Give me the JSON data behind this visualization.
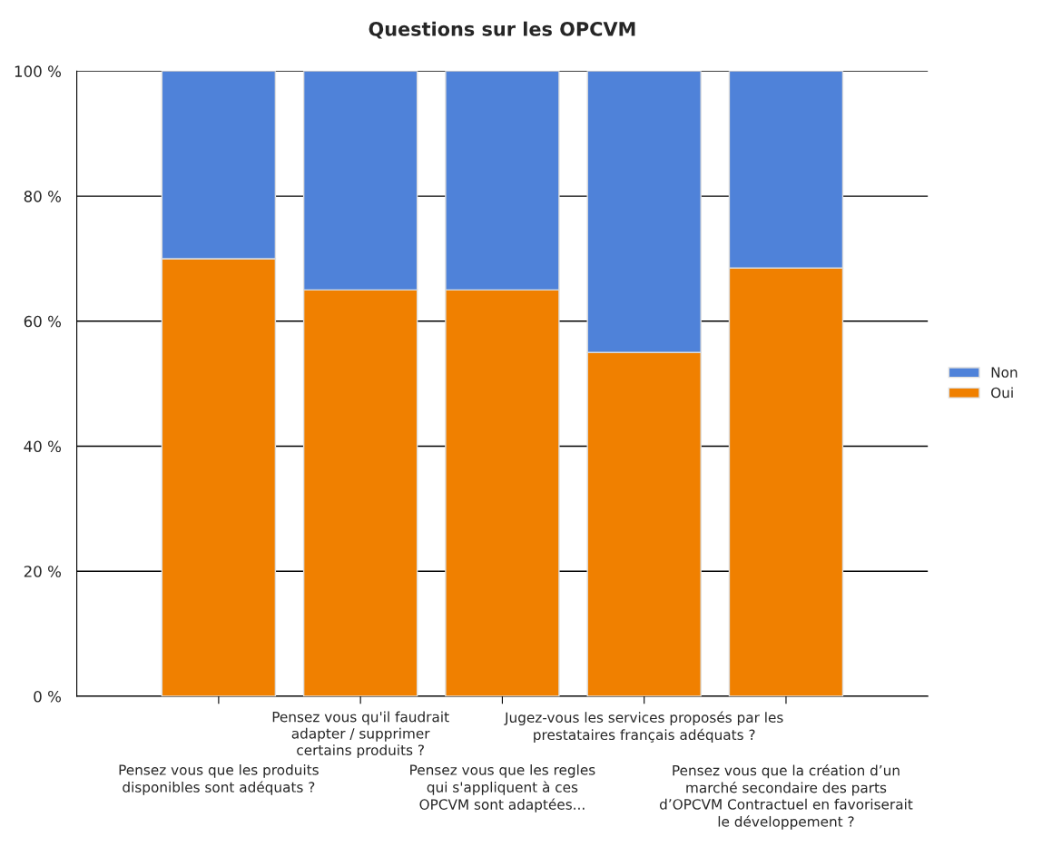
{
  "chart_data": {
    "type": "bar",
    "title": "Questions sur les OPCVM",
    "stacked": true,
    "categories": [
      "Pensez vous que les produits\ndisponibles sont adéquats ?",
      "Pensez vous qu'il faudrait\nadapter / supprimer\ncertains produits ?",
      "Pensez vous que les regles\nqui s'appliquent à ces\nOPCVM sont adaptées...",
      "Jugez-vous les services proposés par les\nprestataires français adéquats ?",
      "Pensez vous que la création d’un\nmarché secondaire des parts\nd’OPCVM Contractuel en favoriserait\nle développement ?"
    ],
    "series": [
      {
        "name": "Oui",
        "color": "#f08000",
        "values": [
          70,
          65,
          65,
          55,
          68.5
        ]
      },
      {
        "name": "Non",
        "color": "#4f82d9",
        "values": [
          30,
          35,
          35,
          45,
          31.5
        ]
      }
    ],
    "ylim": [
      0,
      100
    ],
    "yticks": [
      {
        "value": 0,
        "label": "0 %"
      },
      {
        "value": 20,
        "label": "20 %"
      },
      {
        "value": 40,
        "label": "40 %"
      },
      {
        "value": 60,
        "label": "60 %"
      },
      {
        "value": 80,
        "label": "80 %"
      },
      {
        "value": 100,
        "label": "100 %"
      }
    ],
    "grid": "y",
    "legend": "right"
  }
}
